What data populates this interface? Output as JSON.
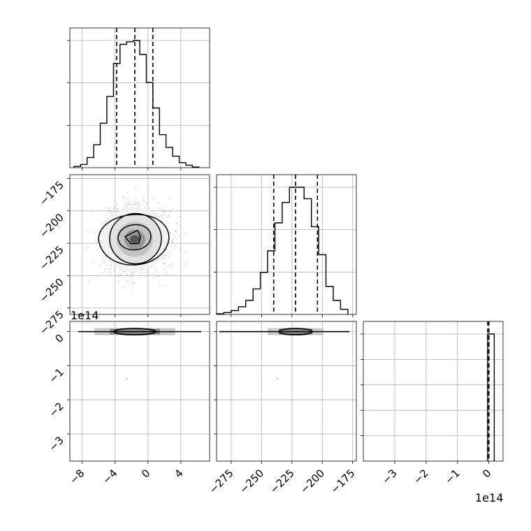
{
  "chart_data": {
    "type": "corner",
    "panels": {
      "hist_x": {
        "type": "histogram",
        "xlim": [
          -9.5,
          7.5
        ],
        "bin_edges": [
          -9,
          -8.2,
          -7.4,
          -6.6,
          -5.8,
          -5,
          -4.2,
          -3.4,
          -2.6,
          -1.8,
          -1,
          -0.2,
          0.6,
          1.4,
          2.2,
          3,
          3.8,
          4.6,
          5.4,
          6.2
        ],
        "counts": [
          0.01,
          0.025,
          0.08,
          0.18,
          0.35,
          0.56,
          0.82,
          0.97,
          0.99,
          1.0,
          0.89,
          0.67,
          0.47,
          0.26,
          0.16,
          0.09,
          0.04,
          0.02,
          0.005
        ],
        "quantiles": [
          -3.8,
          -1.6,
          0.6
        ],
        "ytick_fractions": [
          0.333,
          0.667,
          1.0
        ],
        "xticks": [
          -8,
          -4,
          0,
          4
        ]
      },
      "scatter_xy": {
        "type": "scatter_contour",
        "xlim": [
          -9.5,
          7.5
        ],
        "ylim": [
          -280,
          -172
        ],
        "center": [
          -1.6,
          -222
        ],
        "spread": [
          2.0,
          13
        ],
        "xticks": [
          -8,
          -4,
          0,
          4
        ],
        "yticks": [
          -175,
          -200,
          -225,
          -250,
          -275
        ]
      },
      "hist_y": {
        "type": "histogram",
        "xlim": [
          -287,
          -172
        ],
        "bin_edges": [
          -287,
          -281,
          -275,
          -269,
          -263,
          -257,
          -251,
          -245,
          -239,
          -233,
          -227,
          -221,
          -215,
          -209,
          -203,
          -197,
          -191,
          -185,
          -179
        ],
        "counts": [
          0.005,
          0.015,
          0.03,
          0.06,
          0.11,
          0.2,
          0.33,
          0.5,
          0.72,
          0.88,
          1.0,
          1.0,
          0.91,
          0.69,
          0.47,
          0.22,
          0.11,
          0.04
        ],
        "quantiles": [
          -240,
          -222,
          -204
        ],
        "ytick_fractions": [
          0.333,
          0.667,
          1.0
        ],
        "xticks": [
          -275,
          -250,
          -225,
          -200,
          -175
        ]
      },
      "scatter_xz": {
        "type": "scatter_contour",
        "xlim": [
          -9.5,
          7.5
        ],
        "ylim": [
          -3.8,
          0.3
        ],
        "yticks": [
          0,
          -1,
          -2,
          -3
        ],
        "xticks": [
          -8,
          -4,
          0,
          4
        ]
      },
      "scatter_yz": {
        "type": "scatter_contour",
        "xlim": [
          -287,
          -172
        ],
        "ylim": [
          -3.8,
          0.3
        ],
        "xticks": [
          -275,
          -250,
          -225,
          -200,
          -175
        ]
      },
      "hist_z": {
        "type": "histogram",
        "xlim": [
          -4.0,
          0.45
        ],
        "bin_edges": [
          -0.04,
          0.17
        ],
        "counts": [
          1.0
        ],
        "quantiles": [
          -0.04,
          0.0
        ],
        "ytick_fractions": [
          0.2,
          0.4,
          0.6,
          0.8,
          1.0
        ],
        "xticks": [
          -3,
          -2,
          -1,
          0
        ]
      }
    },
    "offset_labels": [
      "1e14",
      "1e14"
    ],
    "colors": {
      "line": "#000000",
      "grid": "#b0b0b0",
      "points": "#9e9e9e"
    }
  }
}
